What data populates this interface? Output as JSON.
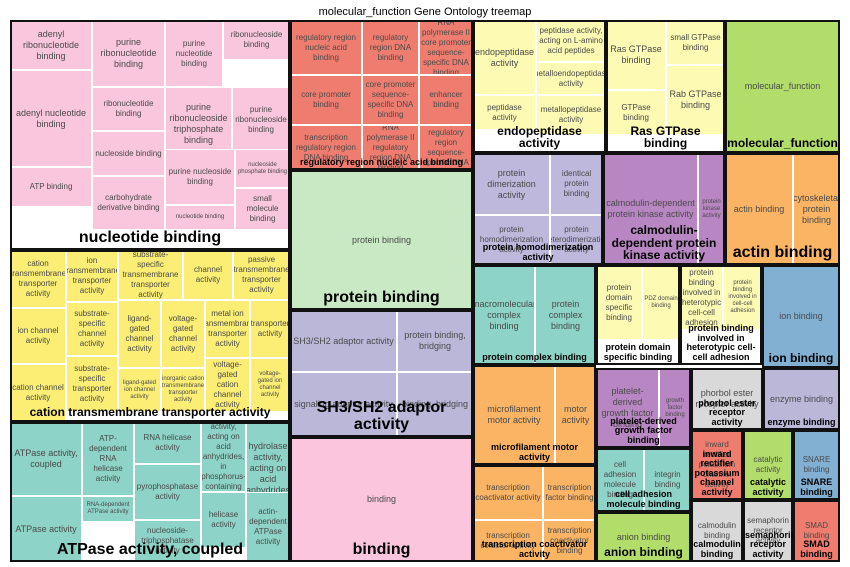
{
  "chart_data": {
    "type": "treemap",
    "title": "molecular_function Gene Ontology treemap",
    "groups": [
      {
        "name": "nucleotide binding",
        "color": "#f9c6dd",
        "size": "large",
        "terms": [
          "adenyl ribonucleotide binding",
          "purine ribonucleotide binding",
          "purine nucleotide binding",
          "ribonucleoside binding",
          "adenyl nucleotide binding",
          "ribonucleotide binding",
          "purine ribonucleoside triphosphate binding",
          "purine ribonucleoside binding",
          "nucleoside binding",
          "ATP binding",
          "purine nucleoside binding",
          "nucleoside phosphate binding",
          "carbohydrate derivative binding",
          "nucleotide binding",
          "small molecule binding"
        ]
      },
      {
        "name": "regulatory region nucleic acid binding",
        "color": "#ef7d6f",
        "size": "small",
        "terms": [
          "regulatory region nucleic acid binding",
          "regulatory region DNA binding",
          "RNA polymerase II core promoter sequence-specific DNA binding",
          "core promoter binding",
          "core promoter sequence-specific DNA binding",
          "enhancer binding",
          "transcription regulatory region DNA binding",
          "RNA polymerase II regulatory region DNA binding",
          "transcription regulatory region sequence-specific DNA binding"
        ]
      },
      {
        "name": "endopeptidase activity",
        "color": "#fdfab3",
        "size": "medium",
        "terms": [
          "endopeptidase activity",
          "peptidase activity, acting on L-amino acid peptides",
          "metalloendopeptidase activity",
          "peptidase activity",
          "metallopeptidase activity"
        ]
      },
      {
        "name": "Ras GTPase binding",
        "color": "#fdfab3",
        "size": "medium",
        "terms": [
          "Ras GTPase binding",
          "small GTPase binding",
          "GTPase binding",
          "Rab GTPase binding"
        ]
      },
      {
        "name": "molecular_function",
        "color": "#b2dd6a",
        "size": "medium",
        "terms": [
          "molecular_function"
        ]
      },
      {
        "name": "protein binding",
        "color": "#c9e9c5",
        "size": "large",
        "terms": [
          "protein binding"
        ]
      },
      {
        "name": "protein homodimerization activity",
        "color": "#beb8dc",
        "size": "small",
        "terms": [
          "protein dimerization activity",
          "identical protein binding",
          "protein homodimerization activity",
          "protein heterodimerization activity"
        ]
      },
      {
        "name": "calmodulin-dependent protein kinase activity",
        "color": "#b886c2",
        "size": "medium",
        "terms": [
          "calmodulin-dependent protein kinase activity",
          "protein kinase activity"
        ]
      },
      {
        "name": "actin binding",
        "color": "#fbb464",
        "size": "large",
        "terms": [
          "actin binding",
          "cytoskeletal protein binding"
        ]
      },
      {
        "name": "cation transmembrane transporter activity",
        "color": "#fcee75",
        "size": "medium",
        "terms": [
          "cation transmembrane transporter activity",
          "ion transmembrane transporter activity",
          "substrate-specific transmembrane transporter activity",
          "channel activity",
          "passive transmembrane transporter activity",
          "ion channel activity",
          "substrate-specific channel activity",
          "ligand-gated channel activity",
          "voltage-gated channel activity",
          "metal ion transmembrane transporter activity",
          "transporter activity",
          "cation channel activity",
          "substrate-specific transporter activity",
          "ligand-gated ion channel activity",
          "inorganic cation transmembrane transporter activity",
          "voltage-gated cation channel activity",
          "voltage-gated ion channel activity"
        ]
      },
      {
        "name": "protein complex binding",
        "color": "#8dd3c7",
        "size": "small",
        "terms": [
          "macromolecular complex binding",
          "protein complex binding"
        ]
      },
      {
        "name": "protein domain specific binding",
        "color": "#fdfab3",
        "size": "small",
        "terms": [
          "protein domain specific binding",
          "PDZ domain binding"
        ]
      },
      {
        "name": "protein binding involved in heterotypic cell-cell adhesion",
        "color": "#fdfab3",
        "size": "small",
        "terms": [
          "protein binding involved in heterotypic cell-cell adhesion",
          "protein binding involved in cell-cell adhesion"
        ]
      },
      {
        "name": "ion binding",
        "color": "#82b0d2",
        "size": "medium",
        "terms": [
          "ion binding"
        ]
      },
      {
        "name": "SH3/SH2 adaptor activity",
        "color": "#bbb7d9",
        "size": "large",
        "terms": [
          "SH3/SH2 adaptor activity",
          "protein binding, bridging",
          "signaling adaptor activity",
          "binding, bridging"
        ]
      },
      {
        "name": "ATPase activity, coupled",
        "color": "#8dd3c7",
        "size": "large",
        "terms": [
          "ATPase activity, coupled",
          "ATP-dependent RNA helicase activity",
          "RNA helicase activity",
          "hydrolase activity, acting on acid anhydrides, in phosphorus-containing anhydrides",
          "hydrolase activity, acting on acid anhydrides",
          "RNA-dependent ATPase activity",
          "pyrophosphatase activity",
          "ATPase activity",
          "helicase activity",
          "nucleoside-triphosphatase activity",
          "actin-dependent ATPase activity"
        ]
      },
      {
        "name": "binding",
        "color": "#fbc5de",
        "size": "large",
        "terms": [
          "binding"
        ]
      },
      {
        "name": "microfilament motor activity",
        "color": "#fbb464",
        "size": "small",
        "terms": [
          "microfilament motor activity",
          "motor activity"
        ]
      },
      {
        "name": "platelet-derived growth factor binding",
        "color": "#b886c2",
        "size": "small",
        "terms": [
          "platelet-derived growth factor binding",
          "growth factor binding"
        ]
      },
      {
        "name": "phorbol ester receptor activity",
        "color": "#d9d9d9",
        "size": "small",
        "terms": [
          "phorbol ester receptor activity"
        ]
      },
      {
        "name": "enzyme binding",
        "color": "#bbb7d9",
        "size": "small",
        "terms": [
          "enzyme binding"
        ]
      },
      {
        "name": "cell adhesion molecule binding",
        "color": "#8dd3c7",
        "size": "small",
        "terms": [
          "cell adhesion molecule binding",
          "integrin binding"
        ]
      },
      {
        "name": "inward rectifier potassium channel activity",
        "color": "#ef7d6f",
        "size": "small",
        "terms": [
          "inward rectifier potassium channel activity"
        ]
      },
      {
        "name": "catalytic activity",
        "color": "#b2dd6a",
        "size": "medium",
        "terms": [
          "catalytic activity"
        ]
      },
      {
        "name": "SNARE binding",
        "color": "#82b0d2",
        "size": "medium",
        "terms": [
          "SNARE binding"
        ]
      },
      {
        "name": "transcription coactivator activity",
        "color": "#fbb464",
        "size": "small",
        "terms": [
          "transcription coactivator activity",
          "transcription factor binding",
          "transcription cofactor activity",
          "transcription coactivator binding"
        ]
      },
      {
        "name": "anion binding",
        "color": "#b2dd6a",
        "size": "medium",
        "terms": [
          "anion binding"
        ]
      },
      {
        "name": "calmodulin binding",
        "color": "#d9d9d9",
        "size": "small",
        "terms": [
          "calmodulin binding"
        ]
      },
      {
        "name": "semaphorin receptor activity",
        "color": "#d9d9d9",
        "size": "small",
        "terms": [
          "semaphorin receptor activity"
        ]
      },
      {
        "name": "SMAD binding",
        "color": "#ef7d6f",
        "size": "medium",
        "terms": [
          "SMAD binding"
        ]
      }
    ]
  }
}
